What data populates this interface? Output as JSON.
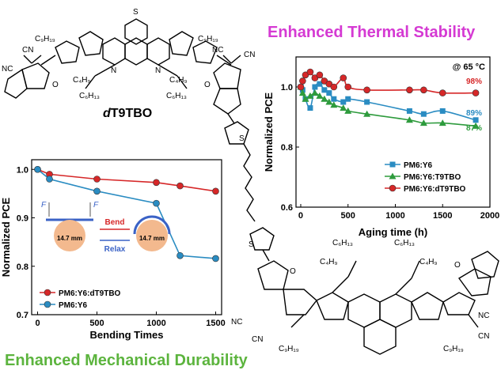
{
  "headings": {
    "thermal": "Enhanced Thermal Stability",
    "mechanical": "Enhanced Mechanical Durability"
  },
  "molecule": {
    "name_prefix": "d",
    "name_rest": "T9TBO",
    "labels": {
      "c9h19_left": "C₉H₁₉",
      "c9h19_right": "C₉H₁₉",
      "nc_left": "NC",
      "cn_left": "CN",
      "nc_right": "NC",
      "cn_right": "CN",
      "c4h9_left": "C₄H₉",
      "c4h9_right": "C₄H₉",
      "c6h13_left": "C₆H₁₃",
      "c6h13_right": "C₆H₁₃",
      "o_left": "O",
      "o_right": "O",
      "n_left": "N",
      "n_right": "N",
      "s": "S"
    }
  },
  "thermal_chart": {
    "annotation": "@ 65 °C",
    "xlabel": "Aging time (h)",
    "ylabel": "Normalized PCE",
    "end_labels": [
      "98%",
      "89%",
      "87%"
    ],
    "end_label_colors": [
      "#d62728",
      "#2a8cc2",
      "#2e9b3d"
    ]
  },
  "bending_chart": {
    "xlabel": "Bending Times",
    "ylabel": "Normalized PCE",
    "inset": {
      "force": "F",
      "bend": "Bend",
      "relax": "Relax",
      "diameter_left": "14.7 mm",
      "diameter_right": "14.7 mm"
    }
  },
  "chart_data": [
    {
      "type": "line",
      "title": "",
      "xlabel": "Aging time (h)",
      "ylabel": "Normalized PCE",
      "xlim": [
        -50,
        2000
      ],
      "ylim": [
        0.6,
        1.1
      ],
      "xticks": [
        0,
        500,
        1000,
        1500,
        2000
      ],
      "yticks": [
        0.6,
        0.8,
        1.0
      ],
      "legend_position": "lower-right",
      "series": [
        {
          "name": "PM6:Y6",
          "color": "#2a8cc2",
          "marker": "square",
          "x": [
            0,
            20,
            50,
            100,
            150,
            200,
            250,
            300,
            350,
            450,
            500,
            700,
            1150,
            1300,
            1500,
            1850
          ],
          "y": [
            1.0,
            0.99,
            0.96,
            0.93,
            1.0,
            1.01,
            0.99,
            0.98,
            0.96,
            0.95,
            0.96,
            0.95,
            0.92,
            0.91,
            0.92,
            0.89
          ]
        },
        {
          "name": "PM6:Y6:T9TBO",
          "color": "#2e9b3d",
          "marker": "triangle",
          "x": [
            0,
            20,
            50,
            100,
            150,
            200,
            250,
            300,
            350,
            450,
            500,
            700,
            1150,
            1300,
            1500,
            1850
          ],
          "y": [
            1.0,
            0.98,
            0.96,
            0.97,
            0.98,
            0.97,
            0.96,
            0.95,
            0.94,
            0.93,
            0.92,
            0.91,
            0.89,
            0.88,
            0.88,
            0.87
          ]
        },
        {
          "name": "PM6:Y6:dT9TBO",
          "color": "#d62728",
          "marker": "circle",
          "x": [
            0,
            20,
            50,
            100,
            150,
            200,
            250,
            300,
            350,
            450,
            500,
            700,
            1150,
            1300,
            1500,
            1850
          ],
          "y": [
            1.0,
            1.02,
            1.04,
            1.05,
            1.03,
            1.04,
            1.02,
            1.01,
            1.0,
            1.03,
            1.0,
            0.99,
            0.99,
            0.99,
            0.98,
            0.98
          ]
        }
      ]
    },
    {
      "type": "line",
      "title": "",
      "xlabel": "Bending Times",
      "ylabel": "Normalized PCE",
      "xlim": [
        -50,
        1550
      ],
      "ylim": [
        0.7,
        1.02
      ],
      "xticks": [
        0,
        500,
        1000,
        1500
      ],
      "yticks": [
        0.7,
        0.8,
        0.9,
        1.0
      ],
      "legend_position": "lower-left",
      "series": [
        {
          "name": "PM6:Y6:dT9TBO",
          "color": "#d62728",
          "marker": "circle",
          "x": [
            0,
            100,
            500,
            1000,
            1200,
            1500
          ],
          "y": [
            1.0,
            0.99,
            0.98,
            0.973,
            0.966,
            0.955
          ]
        },
        {
          "name": "PM6:Y6",
          "color": "#2a8cc2",
          "marker": "circle",
          "x": [
            0,
            100,
            500,
            1000,
            1200,
            1500
          ],
          "y": [
            1.0,
            0.98,
            0.955,
            0.93,
            0.822,
            0.816
          ]
        }
      ]
    }
  ]
}
